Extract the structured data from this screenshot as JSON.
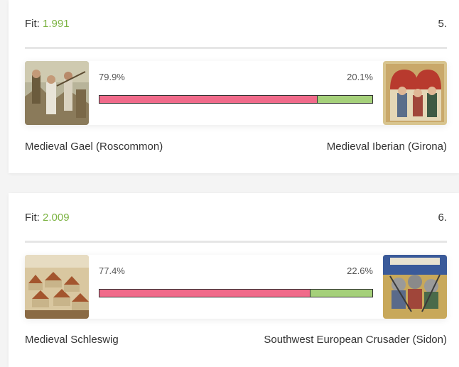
{
  "colors": {
    "primary_bar": "#f06a8a",
    "secondary_bar": "#a5d07a",
    "fit_value": "#7cb342"
  },
  "results": [
    {
      "fit_label": "Fit:",
      "fit_value": "1.991",
      "rank": "5.",
      "left_pct": "79.9%",
      "right_pct": "20.1%",
      "left_share": 79.9,
      "left_name": "Medieval Gael (Roscommon)",
      "right_name": "Medieval Iberian (Girona)",
      "left_image": "medieval-gael-painting",
      "right_image": "medieval-iberian-manuscript"
    },
    {
      "fit_label": "Fit:",
      "fit_value": "2.009",
      "rank": "6.",
      "left_pct": "77.4%",
      "right_pct": "22.6%",
      "left_share": 77.4,
      "left_name": "Medieval Schleswig",
      "right_name": "Southwest European Crusader (Sidon)",
      "left_image": "medieval-schleswig-town",
      "right_image": "crusader-battle-manuscript"
    }
  ]
}
